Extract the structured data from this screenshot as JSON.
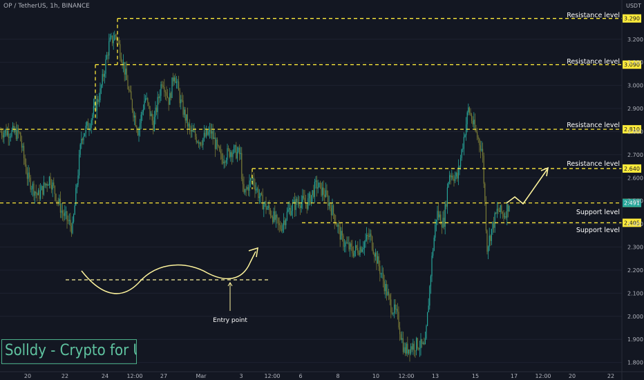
{
  "header": {
    "title": "OP / TetherUS, 1h, BINANCE",
    "currency": "USDT"
  },
  "watermark": "Solldy - Crypto for U",
  "colors": {
    "background": "#131722",
    "up": "#26a69a",
    "down": "#787b36",
    "level": "#ffeb3b",
    "annotation": "#fff59d",
    "axis_text": "#b2b5be",
    "grid": "#1e2230"
  },
  "chart_data": {
    "type": "candlestick",
    "symbol": "OP/USDT",
    "ylim": [
      1.76,
      3.34
    ],
    "y_ticks": [
      "3.200",
      "3.100",
      "3.000",
      "2.900",
      "2.800",
      "2.700",
      "2.600",
      "2.500",
      "2.400",
      "2.300",
      "2.200",
      "2.100",
      "2.000",
      "1.900",
      "1.800"
    ],
    "x_ticks": [
      "20",
      "22",
      "24",
      "12:00",
      "27",
      "Mar",
      "3",
      "12:00",
      "6",
      "8",
      "10",
      "12:00",
      "13",
      "15",
      "17",
      "12:00",
      "20",
      "22"
    ],
    "levels": [
      {
        "label": "Resistance level",
        "price": 3.29,
        "price_label": "3.290"
      },
      {
        "label": "Resistance level",
        "price": 3.09,
        "price_label": "3.090"
      },
      {
        "label": "Resistance level",
        "price": 2.81,
        "price_label": "2.810"
      },
      {
        "label": "Resistance level",
        "price": 2.64,
        "price_label": "2.640"
      },
      {
        "label": "Support level",
        "price": 2.491,
        "price_label": "2.491"
      },
      {
        "label": "Support level",
        "price": 2.405,
        "price_label": "2.405"
      }
    ],
    "current_price": "2.491",
    "annotations": [
      {
        "text": "Entry point"
      }
    ],
    "path": [
      [
        0,
        2.8
      ],
      [
        12,
        2.8
      ],
      [
        28,
        2.79
      ],
      [
        40,
        2.6
      ],
      [
        55,
        2.52
      ],
      [
        72,
        2.6
      ],
      [
        90,
        2.45
      ],
      [
        105,
        2.38
      ],
      [
        118,
        2.78
      ],
      [
        130,
        2.84
      ],
      [
        145,
        2.97
      ],
      [
        158,
        3.18
      ],
      [
        168,
        3.22
      ],
      [
        178,
        3.1
      ],
      [
        188,
        2.95
      ],
      [
        200,
        2.8
      ],
      [
        210,
        2.95
      ],
      [
        222,
        2.83
      ],
      [
        235,
        3.03
      ],
      [
        245,
        2.93
      ],
      [
        252,
        3.06
      ],
      [
        262,
        2.92
      ],
      [
        275,
        2.8
      ],
      [
        290,
        2.76
      ],
      [
        305,
        2.8
      ],
      [
        320,
        2.68
      ],
      [
        335,
        2.72
      ],
      [
        348,
        2.7
      ],
      [
        352,
        2.52
      ],
      [
        365,
        2.6
      ],
      [
        378,
        2.5
      ],
      [
        392,
        2.45
      ],
      [
        405,
        2.38
      ],
      [
        418,
        2.46
      ],
      [
        432,
        2.5
      ],
      [
        445,
        2.49
      ],
      [
        458,
        2.57
      ],
      [
        470,
        2.53
      ],
      [
        482,
        2.45
      ],
      [
        495,
        2.33
      ],
      [
        510,
        2.28
      ],
      [
        522,
        2.3
      ],
      [
        535,
        2.35
      ],
      [
        545,
        2.25
      ],
      [
        555,
        2.15
      ],
      [
        565,
        2.05
      ],
      [
        575,
        2.0
      ],
      [
        585,
        1.85
      ],
      [
        595,
        1.87
      ],
      [
        605,
        1.88
      ],
      [
        615,
        1.86
      ],
      [
        625,
        2.25
      ],
      [
        632,
        2.45
      ],
      [
        642,
        2.4
      ],
      [
        650,
        2.62
      ],
      [
        662,
        2.6
      ],
      [
        670,
        2.75
      ],
      [
        678,
        2.9
      ],
      [
        688,
        2.8
      ],
      [
        698,
        2.72
      ],
      [
        705,
        2.3
      ],
      [
        712,
        2.38
      ],
      [
        720,
        2.46
      ],
      [
        730,
        2.44
      ],
      [
        738,
        2.5
      ]
    ]
  }
}
